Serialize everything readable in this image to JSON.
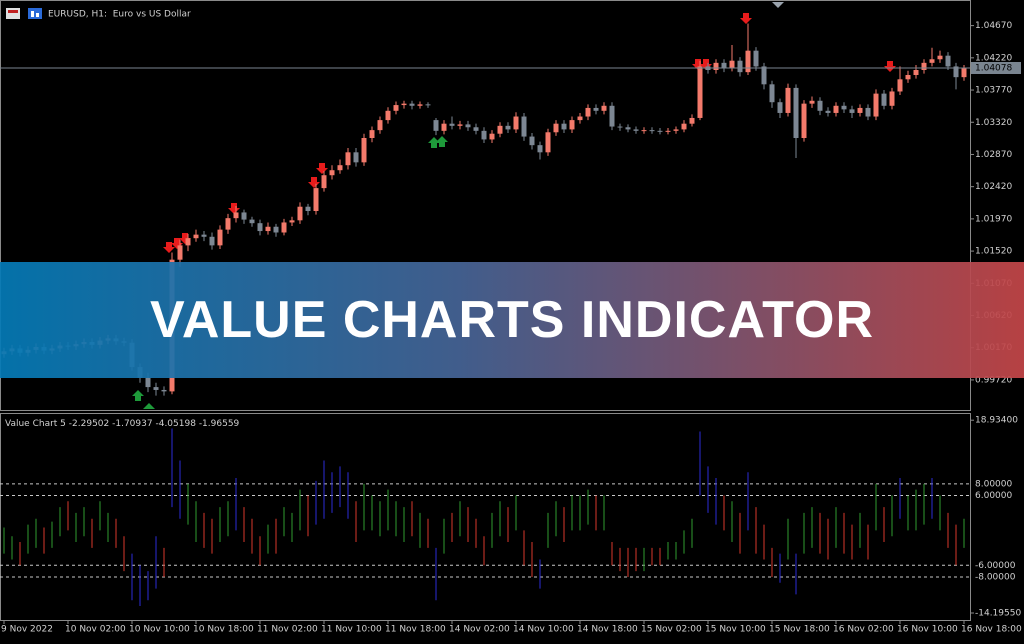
{
  "banner": "VALUE CHARTS INDICATOR",
  "chart_data": [
    {
      "type": "candlestick",
      "title": "EURUSD, H1:  Euro vs US Dollar",
      "categories": [
        "9 Nov 2022",
        null,
        null,
        null,
        null,
        null,
        null,
        null,
        "10 Nov 02:00",
        null,
        null,
        null,
        null,
        null,
        null,
        null,
        "10 Nov 10:00",
        null,
        null,
        null,
        null,
        null,
        null,
        null,
        "10 Nov 18:00",
        null,
        null,
        null,
        null,
        null,
        null,
        null,
        "11 Nov 02:00",
        null,
        null,
        null,
        null,
        null,
        null,
        null,
        "11 Nov 10:00",
        null,
        null,
        null,
        null,
        null,
        null,
        null,
        "11 Nov 18:00",
        null,
        null,
        null,
        null,
        null,
        null,
        null,
        "14 Nov 02:00",
        null,
        null,
        null,
        null,
        null,
        null,
        null,
        "14 Nov 10:00",
        null,
        null,
        null,
        null,
        null,
        null,
        null,
        "14 Nov 18:00",
        null,
        null,
        null,
        null,
        null,
        null,
        null,
        "15 Nov 02:00",
        null,
        null,
        null,
        null,
        null,
        null,
        null,
        "15 Nov 10:00",
        null,
        null,
        null,
        null,
        null,
        null,
        null,
        "15 Nov 18:00",
        null,
        null,
        null,
        null,
        null,
        null,
        null,
        "16 Nov 02:00",
        null,
        null,
        null,
        null,
        null,
        null,
        null,
        "16 Nov 10:00",
        null,
        null,
        null,
        null,
        null,
        null,
        null,
        "16 Nov 18:00"
      ],
      "open": [
        1.0008,
        1.0012,
        1.0016,
        1.001,
        1.0014,
        1.0018,
        1.0013,
        1.0016,
        1.002,
        1.0019,
        1.0022,
        1.0025,
        1.0021,
        1.0027,
        1.003,
        1.0026,
        1.0024,
        0.999,
        0.9975,
        0.9962,
        0.9958,
        0.9956,
        1.014,
        1.016,
        1.017,
        1.0175,
        1.0172,
        1.016,
        1.0182,
        1.0198,
        1.0206,
        1.0196,
        1.0191,
        1.018,
        1.0186,
        1.0178,
        1.0192,
        1.0195,
        1.0214,
        1.0208,
        1.024,
        1.0258,
        1.0265,
        1.0272,
        1.029,
        1.0276,
        1.031,
        1.0321,
        1.0335,
        1.0348,
        1.0356,
        1.0358,
        1.0355,
        1.0357,
        1.0335,
        1.032,
        1.033,
        1.0327,
        1.0329,
        1.0325,
        1.032,
        1.0308,
        1.0316,
        1.0327,
        1.0322,
        1.034,
        1.0312,
        1.03,
        1.029,
        1.0318,
        1.033,
        1.0322,
        1.0335,
        1.034,
        1.0352,
        1.0348,
        1.0355,
        1.0326,
        1.0325,
        1.0322,
        1.032,
        1.0321,
        1.032,
        1.0319,
        1.032,
        1.0322,
        1.033,
        1.0338,
        1.041,
        1.0405,
        1.0415,
        1.0408,
        1.0418,
        1.0402,
        1.0432,
        1.041,
        1.0385,
        1.036,
        1.0345,
        1.038,
        1.031,
        1.0358,
        1.0362,
        1.0348,
        1.0345,
        1.0355,
        1.035,
        1.0345,
        1.0352,
        1.034,
        1.0372,
        1.0355,
        1.0375,
        1.0392,
        1.0398,
        1.0405,
        1.0415,
        1.042,
        1.0425,
        1.041,
        1.0395
      ],
      "high": [
        1.0017,
        1.0021,
        1.0021,
        1.0019,
        1.0023,
        1.0023,
        1.0021,
        1.0025,
        1.0025,
        1.0027,
        1.003,
        1.003,
        1.0032,
        1.0035,
        1.0035,
        1.0031,
        1.0029,
        0.9995,
        0.9982,
        0.9968,
        0.9963,
        1.015,
        1.0168,
        1.0176,
        1.0182,
        1.018,
        1.0178,
        1.0188,
        1.0204,
        1.0215,
        1.021,
        1.02,
        1.0196,
        1.0192,
        1.019,
        1.0197,
        1.02,
        1.022,
        1.0218,
        1.0246,
        1.0264,
        1.0272,
        1.028,
        1.0296,
        1.0296,
        1.0316,
        1.0326,
        1.034,
        1.0353,
        1.0361,
        1.0362,
        1.0362,
        1.0361,
        1.036,
        1.0338,
        1.0335,
        1.034,
        1.0334,
        1.0334,
        1.033,
        1.0325,
        1.0321,
        1.0332,
        1.0332,
        1.0346,
        1.0345,
        1.0317,
        1.0305,
        1.0323,
        1.0335,
        1.0335,
        1.034,
        1.0345,
        1.0357,
        1.0357,
        1.036,
        1.036,
        1.033,
        1.0329,
        1.0326,
        1.0325,
        1.0325,
        1.0324,
        1.0324,
        1.0326,
        1.0335,
        1.0343,
        1.0418,
        1.0415,
        1.042,
        1.042,
        1.044,
        1.0423,
        1.047,
        1.0437,
        1.0415,
        1.039,
        1.0365,
        1.0386,
        1.0385,
        1.0363,
        1.0368,
        1.0367,
        1.0353,
        1.036,
        1.036,
        1.0355,
        1.0357,
        1.0357,
        1.0378,
        1.0377,
        1.038,
        1.041,
        1.0404,
        1.0412,
        1.042,
        1.0436,
        1.0432,
        1.043,
        1.0415,
        1.0412
      ],
      "low": [
        1.0003,
        1.0007,
        1.0005,
        1.0005,
        1.0009,
        1.0008,
        1.0008,
        1.0011,
        1.0014,
        1.0014,
        1.0017,
        1.0016,
        1.0016,
        1.0022,
        1.0021,
        1.0019,
        0.9985,
        0.9968,
        0.9955,
        0.995,
        0.995,
        0.9952,
        1.013,
        1.0152,
        1.0165,
        1.0166,
        1.0154,
        1.0155,
        1.0176,
        1.0192,
        1.019,
        1.0186,
        1.0174,
        1.0175,
        1.0172,
        1.0174,
        1.0187,
        1.019,
        1.0202,
        1.0203,
        1.0235,
        1.0252,
        1.026,
        1.0266,
        1.027,
        1.0271,
        1.0304,
        1.0316,
        1.033,
        1.0343,
        1.0351,
        1.035,
        1.0351,
        1.0352,
        1.0314,
        1.0315,
        1.0322,
        1.0322,
        1.032,
        1.0315,
        1.0303,
        1.0303,
        1.0311,
        1.0317,
        1.0317,
        1.0306,
        1.0294,
        1.028,
        1.0285,
        1.0313,
        1.0317,
        1.0317,
        1.033,
        1.0335,
        1.0343,
        1.0343,
        1.0321,
        1.032,
        1.0318,
        1.0316,
        1.0316,
        1.0316,
        1.0315,
        1.0315,
        1.0316,
        1.0318,
        1.0326,
        1.0335,
        1.04,
        1.04,
        1.0402,
        1.0403,
        1.0396,
        1.0398,
        1.0404,
        1.0378,
        1.0352,
        1.0338,
        1.034,
        1.0282,
        1.0305,
        1.0352,
        1.0342,
        1.034,
        1.034,
        1.0345,
        1.0338,
        1.034,
        1.0335,
        1.0335,
        1.035,
        1.035,
        1.037,
        1.0387,
        1.0393,
        1.04,
        1.041,
        1.0415,
        1.0405,
        1.0378,
        1.039
      ],
      "close": [
        1.0012,
        1.0016,
        1.001,
        1.0014,
        1.0018,
        1.0013,
        1.0016,
        1.002,
        1.0019,
        1.0022,
        1.0025,
        1.0021,
        1.0027,
        1.003,
        1.0026,
        1.0024,
        0.999,
        0.9975,
        0.9962,
        0.9958,
        0.9956,
        1.014,
        1.016,
        1.017,
        1.0175,
        1.0172,
        1.016,
        1.0182,
        1.0198,
        1.0206,
        1.0196,
        1.0191,
        1.018,
        1.0186,
        1.0178,
        1.0192,
        1.0195,
        1.0214,
        1.0208,
        1.024,
        1.0258,
        1.0265,
        1.0272,
        1.029,
        1.0276,
        1.031,
        1.0321,
        1.0335,
        1.0348,
        1.0356,
        1.0358,
        1.0355,
        1.0357,
        1.0356,
        1.032,
        1.033,
        1.0327,
        1.0329,
        1.0325,
        1.032,
        1.0308,
        1.0316,
        1.0327,
        1.0322,
        1.034,
        1.0312,
        1.03,
        1.029,
        1.0318,
        1.033,
        1.0322,
        1.0335,
        1.034,
        1.0352,
        1.0348,
        1.0355,
        1.0326,
        1.0325,
        1.0322,
        1.032,
        1.0321,
        1.032,
        1.0319,
        1.032,
        1.0322,
        1.033,
        1.0338,
        1.041,
        1.0405,
        1.0415,
        1.0408,
        1.0418,
        1.0402,
        1.0432,
        1.041,
        1.0385,
        1.036,
        1.0345,
        1.038,
        1.031,
        1.0358,
        1.0362,
        1.0348,
        1.0345,
        1.0355,
        1.035,
        1.0345,
        1.0352,
        1.034,
        1.0372,
        1.0355,
        1.0375,
        1.0392,
        1.0398,
        1.0405,
        1.0415,
        1.042,
        1.0425,
        1.041,
        1.0395,
        1.0408
      ],
      "up_color": "#f37a6b",
      "down_color": "#7d8793",
      "current_price": 1.04078,
      "ylim": [
        0.993,
        1.05
      ],
      "yticks": [
        {
          "value": 1.0467,
          "label": "1.04670"
        },
        {
          "value": 1.0422,
          "label": "1.04220"
        },
        {
          "value": 1.0377,
          "label": "1.03770"
        },
        {
          "value": 1.0332,
          "label": "1.03320"
        },
        {
          "value": 1.0287,
          "label": "1.02870"
        },
        {
          "value": 1.0242,
          "label": "1.02420"
        },
        {
          "value": 1.0197,
          "label": "1.01970"
        },
        {
          "value": 1.0152,
          "label": "1.01520"
        },
        {
          "value": 1.0107,
          "label": "1.01070"
        },
        {
          "value": 1.0062,
          "label": "1.00620"
        },
        {
          "value": 1.0017,
          "label": "1.00170"
        },
        {
          "value": 0.9972,
          "label": "0.99720"
        }
      ]
    },
    {
      "type": "range-bar",
      "title": "Value Chart 5",
      "indicator_values": [
        -2.29502,
        -1.70937,
        -4.05198,
        -1.96559
      ],
      "high": [
        0.5,
        -1,
        -2,
        1,
        2,
        0.5,
        1.5,
        4,
        5,
        3,
        4,
        2,
        5,
        3,
        2,
        -1,
        -4,
        -6,
        -7,
        -1,
        -3,
        17.5,
        12,
        8,
        5,
        3,
        2,
        4,
        5,
        9,
        4,
        2,
        -1,
        1,
        2,
        4,
        3,
        7,
        6,
        8.5,
        12,
        10,
        11,
        10,
        5,
        8,
        6,
        5,
        7,
        5,
        4,
        5,
        3,
        2,
        -3,
        2,
        3,
        5,
        4,
        2,
        -1,
        3,
        5,
        4,
        6,
        0,
        -2,
        -5,
        3,
        5,
        4,
        6,
        6,
        7,
        6,
        6,
        -2,
        -3,
        -3,
        -3,
        -3,
        -3,
        -3,
        -2,
        -2,
        0,
        2,
        17,
        11,
        9,
        6,
        5,
        3,
        10,
        4,
        1,
        -3,
        -4,
        2,
        -4,
        3,
        4,
        3,
        2,
        4,
        3,
        1,
        3,
        1,
        8,
        4,
        6,
        9,
        6,
        7,
        8,
        9,
        6,
        3,
        1,
        2
      ],
      "low": [
        -4,
        -5,
        -6,
        -4,
        -3,
        -4,
        -3,
        -1,
        0,
        -2,
        -1,
        -3,
        0,
        -2,
        -3,
        -7,
        -12,
        -13,
        -12,
        -10,
        -8,
        4,
        2,
        1,
        -2,
        -3,
        -4,
        -2,
        -1,
        0,
        -2,
        -4,
        -6,
        -4,
        -4,
        -1,
        -2,
        0,
        -1,
        1,
        2,
        3,
        4,
        2,
        -2,
        0,
        0,
        -1,
        0,
        -1,
        -2,
        -1,
        -3,
        -3,
        -12,
        -4,
        -2,
        -1,
        -2,
        -3,
        -6,
        -3,
        -1,
        -2,
        0,
        -6,
        -8,
        -10,
        -3,
        -1,
        -2,
        0,
        0,
        1,
        0,
        0,
        -6,
        -7,
        -8,
        -7,
        -7,
        -6,
        -6,
        -5,
        -5,
        -4,
        -3,
        6,
        3,
        1,
        0,
        -2,
        -4,
        0,
        -4,
        -5,
        -8,
        -9,
        -5,
        -11,
        -4,
        -3,
        -4,
        -5,
        -3,
        -4,
        -5,
        -3,
        -5,
        0,
        -2,
        -1,
        2,
        0,
        0,
        1,
        2,
        0,
        -3,
        -6,
        -3
      ],
      "up_color": "#2f9d2f",
      "down_color": "#d9392b",
      "extreme_color": "#2b2bd6",
      "ylim": [
        -15.4,
        20
      ],
      "levels": [
        {
          "value": 8,
          "label": "8.00000"
        },
        {
          "value": 6,
          "label": "6.00000"
        },
        {
          "value": -6,
          "label": "-6.00000"
        },
        {
          "value": -8,
          "label": "-8.00000"
        }
      ],
      "yticks": [
        {
          "value": 18.934,
          "label": "18.93400"
        },
        {
          "value": -14.1955,
          "label": "-14.19550"
        }
      ]
    }
  ]
}
